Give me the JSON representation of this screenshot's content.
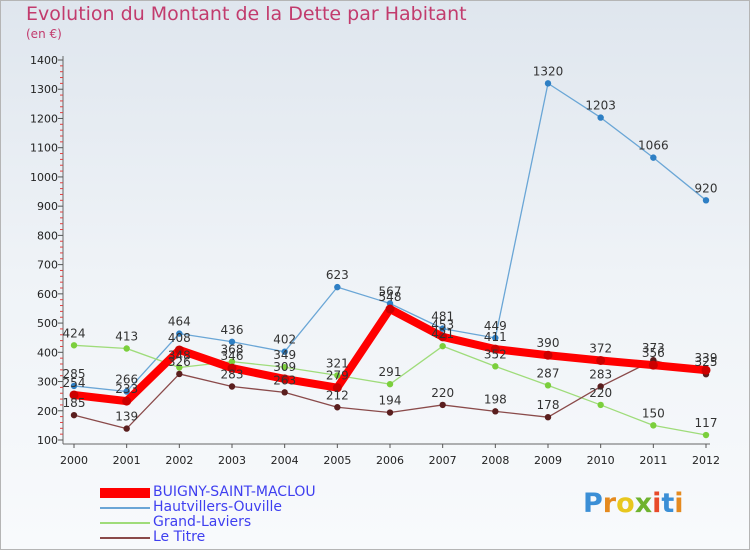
{
  "title": "Evolution du Montant de la Dette par Habitant",
  "subtitle": "(en €)",
  "brand": {
    "letters": [
      "P",
      "r",
      "o",
      "x",
      "i",
      "t",
      "i"
    ],
    "colors": [
      "#3b8fd6",
      "#e58a1e",
      "#e8c71e",
      "#6fb32e",
      "#e84a2a",
      "#3b8fd6",
      "#e58a1e"
    ]
  },
  "chart_data": {
    "type": "line",
    "x": [
      "2000",
      "2001",
      "2002",
      "2003",
      "2004",
      "2005",
      "2006",
      "2007",
      "2008",
      "2009",
      "2010",
      "2011",
      "2012"
    ],
    "ylim": [
      100,
      1400
    ],
    "yticks": [
      100,
      200,
      300,
      400,
      500,
      600,
      700,
      800,
      900,
      1000,
      1100,
      1200,
      1300,
      1400
    ],
    "grid": false,
    "legend_position": "bottom-left",
    "series": [
      {
        "name": "BUIGNY-SAINT-MACLOU",
        "color": "#ff0000",
        "point_color": "#cc0000",
        "width": 8,
        "values": [
          254,
          233,
          408,
          346,
          309,
          279,
          548,
          453,
          411,
          390,
          372,
          356,
          339
        ]
      },
      {
        "name": "Hautvillers-Ouville",
        "color": "#6aa6d6",
        "point_color": "#2e7fc4",
        "width": 1.3,
        "values": [
          285,
          266,
          464,
          436,
          402,
          623,
          567,
          481,
          449,
          1320,
          1203,
          1066,
          920
        ]
      },
      {
        "name": "Grand-Laviers",
        "color": "#9fdc7a",
        "point_color": "#7bcf3c",
        "width": 1.3,
        "values": [
          424,
          413,
          348,
          368,
          349,
          321,
          291,
          421,
          352,
          287,
          220,
          150,
          117
        ]
      },
      {
        "name": "Le Titre",
        "color": "#8a4a4a",
        "point_color": "#5a1e1e",
        "width": 1.3,
        "values": [
          185,
          139,
          326,
          283,
          263,
          212,
          194,
          220,
          198,
          178,
          283,
          373,
          325
        ]
      }
    ]
  }
}
